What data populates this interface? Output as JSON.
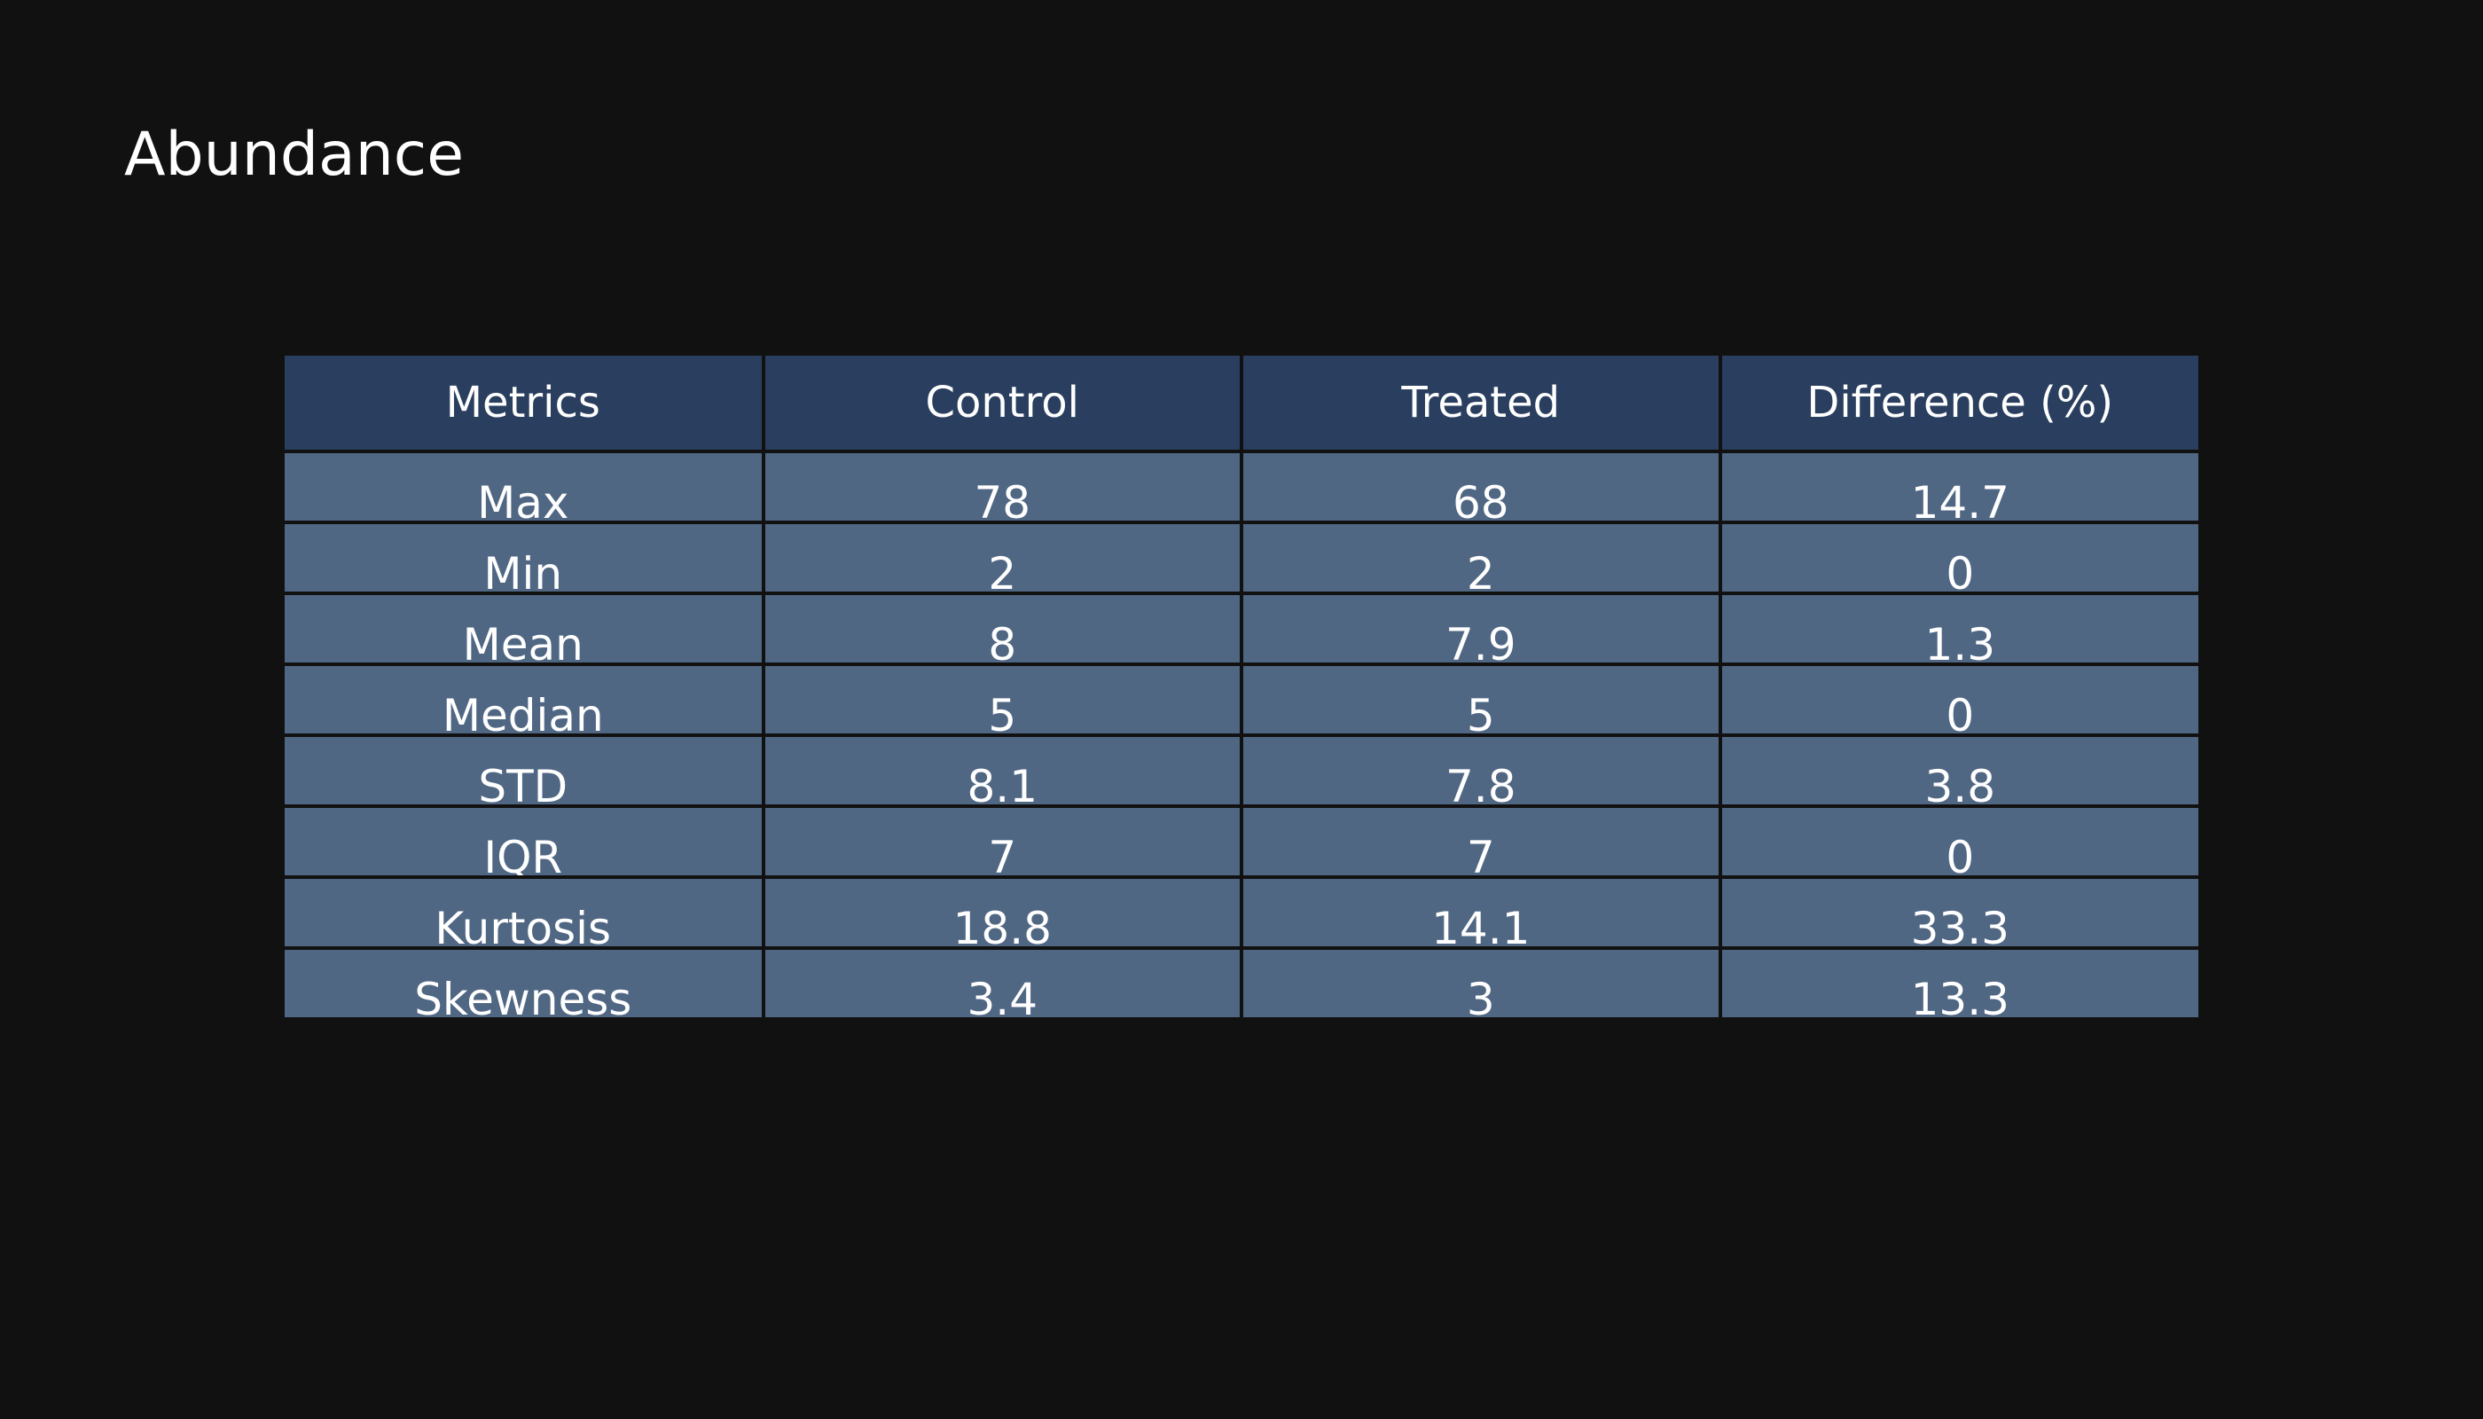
{
  "chart_data": {
    "type": "table",
    "title": "Abundance",
    "columns": [
      "Metrics",
      "Control",
      "Treated",
      "Difference (%)"
    ],
    "rows": [
      [
        "Max",
        "78",
        "68",
        "14.7"
      ],
      [
        "Min",
        "2",
        "2",
        "0"
      ],
      [
        "Mean",
        "8",
        "7.9",
        "1.3"
      ],
      [
        "Median",
        "5",
        "5",
        "0"
      ],
      [
        "STD",
        "8.1",
        "7.8",
        "3.8"
      ],
      [
        "IQR",
        "7",
        "7",
        "0"
      ],
      [
        "Kurtosis",
        "18.8",
        "14.1",
        "33.3"
      ],
      [
        "Skewness",
        "3.4",
        "3",
        "13.3"
      ]
    ]
  },
  "colors": {
    "background": "#111111",
    "header_fill": "#2a3f5f",
    "cell_fill": "#506784",
    "text": "#ffffff",
    "grid_line": "#111111"
  }
}
